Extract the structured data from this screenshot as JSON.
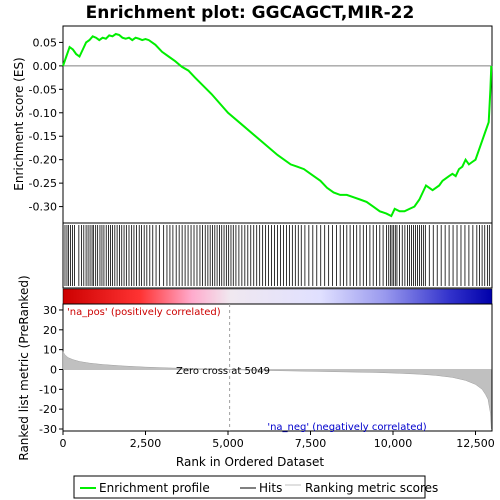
{
  "chart_data": {
    "type": "line",
    "title": "Enrichment plot: GGCAGCT,MIR-22",
    "es_panel": {
      "ylabel": "Enrichment score (ES)",
      "ylim": [
        -0.335,
        0.085
      ],
      "yticks": [
        0.05,
        0.0,
        -0.05,
        -0.1,
        -0.15,
        -0.2,
        -0.25,
        -0.3
      ],
      "ytick_labels": [
        "0.05",
        "0.00",
        "-0.05",
        "-0.10",
        "-0.15",
        "-0.20",
        "-0.25",
        "-0.30"
      ],
      "series": [
        {
          "name": "Enrichment profile",
          "color": "#00ee00",
          "x": [
            0,
            100,
            200,
            300,
            400,
            500,
            600,
            700,
            800,
            900,
            1000,
            1100,
            1200,
            1300,
            1400,
            1500,
            1600,
            1700,
            1800,
            1900,
            2000,
            2100,
            2200,
            2300,
            2400,
            2500,
            2600,
            2700,
            2800,
            3000,
            3200,
            3400,
            3600,
            3800,
            4000,
            4500,
            5000,
            5500,
            6000,
            6500,
            6900,
            7100,
            7300,
            7500,
            7800,
            8000,
            8200,
            8400,
            8600,
            8800,
            9000,
            9200,
            9400,
            9600,
            9800,
            9950,
            10050,
            10200,
            10350,
            10500,
            10650,
            10800,
            10900,
            11000,
            11200,
            11400,
            11500,
            11600,
            11700,
            11800,
            11900,
            12000,
            12100,
            12200,
            12300,
            12400,
            12500,
            12600,
            12700,
            12800,
            12900,
            12950,
            12980
          ],
          "y": [
            0.0,
            0.02,
            0.04,
            0.035,
            0.025,
            0.02,
            0.035,
            0.05,
            0.055,
            0.063,
            0.06,
            0.055,
            0.06,
            0.058,
            0.065,
            0.063,
            0.068,
            0.066,
            0.06,
            0.058,
            0.06,
            0.055,
            0.06,
            0.058,
            0.055,
            0.057,
            0.055,
            0.05,
            0.045,
            0.03,
            0.02,
            0.01,
            -0.002,
            -0.01,
            -0.025,
            -0.06,
            -0.1,
            -0.13,
            -0.16,
            -0.19,
            -0.21,
            -0.215,
            -0.22,
            -0.23,
            -0.245,
            -0.26,
            -0.27,
            -0.275,
            -0.275,
            -0.28,
            -0.285,
            -0.29,
            -0.3,
            -0.31,
            -0.315,
            -0.32,
            -0.305,
            -0.31,
            -0.31,
            -0.305,
            -0.3,
            -0.285,
            -0.27,
            -0.255,
            -0.265,
            -0.255,
            -0.245,
            -0.24,
            -0.235,
            -0.23,
            -0.235,
            -0.22,
            -0.215,
            -0.2,
            -0.21,
            -0.205,
            -0.2,
            -0.18,
            -0.16,
            -0.14,
            -0.12,
            -0.05,
            0.0
          ]
        }
      ],
      "hits": [
        60,
        120,
        170,
        230,
        290,
        350,
        480,
        560,
        630,
        700,
        760,
        820,
        880,
        920,
        990,
        1050,
        1120,
        1180,
        1240,
        1310,
        1380,
        1440,
        1500,
        1570,
        1640,
        1710,
        1780,
        1850,
        1920,
        2000,
        2080,
        2150,
        2230,
        2310,
        2380,
        2460,
        2540,
        2630,
        2720,
        2820,
        2920,
        3050,
        3150,
        3240,
        3330,
        3430,
        3520,
        3610,
        3700,
        3790,
        3880,
        3970,
        4060,
        4150,
        4230,
        4310,
        4390,
        4460,
        4530,
        4600,
        4670,
        4740,
        4810,
        4880,
        4950,
        5020,
        5090,
        5160,
        5240,
        5330,
        5420,
        5510,
        5600,
        5690,
        5780,
        5870,
        5960,
        6050,
        6140,
        6230,
        6320,
        6410,
        6500,
        6590,
        6680,
        6770,
        6860,
        6950,
        7040,
        7130,
        7220,
        7330,
        7450,
        7570,
        7690,
        7810,
        7930,
        8050,
        8170,
        8290,
        8400,
        8500,
        8600,
        8700,
        8800,
        8900,
        9000,
        9100,
        9200,
        9300,
        9400,
        9500,
        9600,
        9700,
        9800,
        9870,
        9920,
        9970,
        10020,
        10070,
        10120,
        10200,
        10280,
        10360,
        10440,
        10500,
        10560,
        10620,
        10680,
        10740,
        10800,
        10860,
        10920,
        10980,
        11100,
        11220,
        11340,
        11460,
        11580,
        11700,
        11820,
        11940,
        12060,
        12180,
        12300,
        12420,
        12540,
        12620,
        12700,
        12780,
        12860,
        12920
      ]
    },
    "rank_panel": {
      "ylabel": "Ranked list metric (PreRanked)",
      "ylim": [
        -31,
        33
      ],
      "yticks": [
        30,
        20,
        10,
        0,
        -10,
        -20,
        -30
      ],
      "ytick_labels": [
        "30",
        "20",
        "10",
        "0",
        "-10",
        "-20",
        "-30"
      ],
      "metric_x": [
        0,
        50,
        150,
        300,
        500,
        800,
        1200,
        1800,
        2500,
        3200,
        4000,
        4600,
        5049,
        5600,
        6500,
        7500,
        8500,
        9500,
        10200,
        10800,
        11300,
        11800,
        12200,
        12500,
        12700,
        12800,
        12880,
        12950,
        12980
      ],
      "metric_y": [
        9.0,
        7.5,
        6.0,
        5.0,
        4.0,
        3.2,
        2.5,
        1.8,
        1.2,
        0.8,
        0.4,
        0.2,
        0.0,
        -0.3,
        -0.6,
        -0.9,
        -1.2,
        -1.5,
        -1.9,
        -2.4,
        -3.0,
        -4.0,
        -5.5,
        -7.5,
        -10.0,
        -12.5,
        -15.0,
        -22.0,
        -30.0
      ],
      "zero_cross_label": "Zero cross at 5049",
      "zero_cross": 5049,
      "pos_label": "'na_pos' (positively correlated)",
      "neg_label": "'na_neg' (negatively correlated)",
      "pos_color": "#cc0000",
      "neg_color": "#0000cc"
    },
    "xlabel": "Rank in Ordered Dataset",
    "xlim": [
      0,
      13000
    ],
    "xticks": [
      0,
      2500,
      5000,
      7500,
      10000,
      12500
    ],
    "xtick_labels": [
      "0",
      "2,500",
      "5,000",
      "7,500",
      "10,000",
      "12,500"
    ],
    "legend": {
      "placement": "bottom",
      "items": [
        "Enrichment profile",
        "Hits",
        "Ranking metric scores"
      ]
    }
  }
}
